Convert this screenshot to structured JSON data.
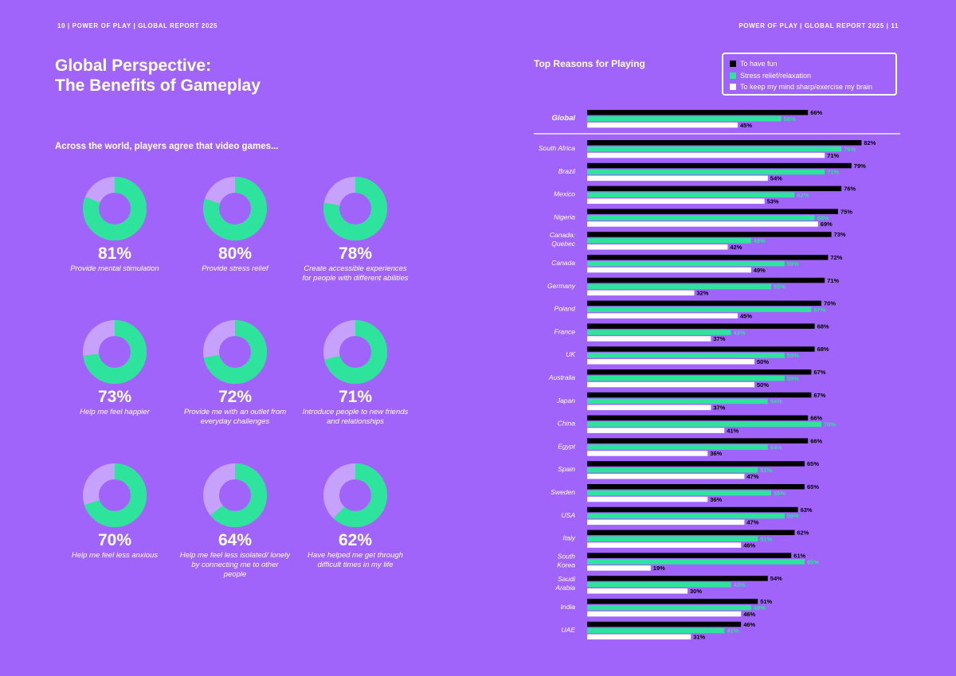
{
  "header": {
    "left": "10  |  POWER OF PLAY  |  GLOBAL REPORT 2025",
    "right": "POWER OF PLAY  |  GLOBAL REPORT 2025  |  11"
  },
  "title": {
    "line1": "Global Perspective:",
    "line2": "The Benefits of Gameplay"
  },
  "subtitle": "Across the world, players agree that video games...",
  "colors": {
    "background": "#a064fb",
    "fun": "#000000",
    "stress": "#2ee39c",
    "mind": "#ffffff",
    "donut_rest": "#c6a2fd"
  },
  "donuts": [
    {
      "value": 81,
      "label": "81%",
      "caption": "Provide mental stimulation"
    },
    {
      "value": 80,
      "label": "80%",
      "caption": "Provide stress relief"
    },
    {
      "value": 78,
      "label": "78%",
      "caption": "Create accessible experiences for people with different abilities"
    },
    {
      "value": 73,
      "label": "73%",
      "caption": "Help me feel happier"
    },
    {
      "value": 72,
      "label": "72%",
      "caption": "Provide me with an outlet from everyday challenges"
    },
    {
      "value": 71,
      "label": "71%",
      "caption": "Introduce people to new friends and relationships"
    },
    {
      "value": 70,
      "label": "70%",
      "caption": "Help me feel less anxious"
    },
    {
      "value": 64,
      "label": "64%",
      "caption": "Help me feel less isolated/ lonely by connecting me to other people"
    },
    {
      "value": 62,
      "label": "62%",
      "caption": "Have helped me get through difficult times in my life"
    }
  ],
  "chart_data": {
    "type": "bar",
    "orientation": "horizontal",
    "title": "Top Reasons for Playing",
    "legend_position": "top-right",
    "xlim": [
      0,
      100
    ],
    "series": [
      {
        "name": "To have fun",
        "key": "fun"
      },
      {
        "name": "Stress relief/relaxation",
        "key": "stress"
      },
      {
        "name": "To keep my mind sharp/exercise my brain",
        "key": "mind"
      }
    ],
    "categories": [
      {
        "name": "Global",
        "values": [
          66,
          58,
          45
        ]
      },
      {
        "name": "South Africa",
        "values": [
          82,
          76,
          71
        ]
      },
      {
        "name": "Brazil",
        "values": [
          79,
          71,
          54
        ]
      },
      {
        "name": "Mexico",
        "values": [
          76,
          62,
          53
        ]
      },
      {
        "name": "Nigeria",
        "values": [
          75,
          68,
          69
        ]
      },
      {
        "name": "Canada: Quebec",
        "values": [
          73,
          49,
          42
        ]
      },
      {
        "name": "Canada",
        "values": [
          72,
          59,
          49
        ]
      },
      {
        "name": "Germany",
        "values": [
          71,
          55,
          32
        ]
      },
      {
        "name": "Poland",
        "values": [
          70,
          67,
          45
        ]
      },
      {
        "name": "France",
        "values": [
          68,
          43,
          37
        ]
      },
      {
        "name": "UK",
        "values": [
          68,
          59,
          50
        ]
      },
      {
        "name": "Australia",
        "values": [
          67,
          59,
          50
        ]
      },
      {
        "name": "Japan",
        "values": [
          67,
          54,
          37
        ]
      },
      {
        "name": "China",
        "values": [
          66,
          70,
          41
        ]
      },
      {
        "name": "Egypt",
        "values": [
          66,
          54,
          36
        ]
      },
      {
        "name": "Spain",
        "values": [
          65,
          51,
          47
        ]
      },
      {
        "name": "Sweden",
        "values": [
          65,
          55,
          36
        ]
      },
      {
        "name": "USA",
        "values": [
          63,
          59,
          47
        ]
      },
      {
        "name": "Italy",
        "values": [
          62,
          51,
          46
        ]
      },
      {
        "name": "South Korea",
        "values": [
          61,
          65,
          19
        ]
      },
      {
        "name": "Saudi Arabia",
        "values": [
          54,
          43,
          30
        ]
      },
      {
        "name": "India",
        "values": [
          51,
          49,
          46
        ]
      },
      {
        "name": "UAE",
        "values": [
          46,
          41,
          31
        ]
      }
    ]
  }
}
